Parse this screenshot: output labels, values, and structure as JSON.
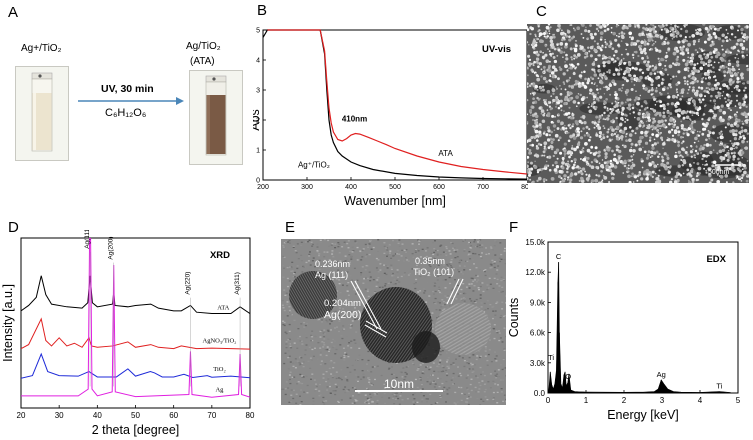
{
  "panel_a": {
    "letter": "A",
    "left_label": "Ag+/TiO₂",
    "right_label_line1": "Ag/TiO₂",
    "right_label_line2": "(ATA)",
    "arrow_top": "UV, 30 min",
    "arrow_bottom": "C₆H₁₂O₆",
    "colors": {
      "left_liquid": "#ece4cf",
      "right_liquid": "#7a5a45",
      "arrow": "#4a86b8"
    }
  },
  "panel_b": {
    "letter": "B"
  },
  "panel_c": {
    "letter": "C",
    "scale_label": "500nm"
  },
  "panel_d": {
    "letter": "D"
  },
  "panel_e": {
    "letter": "E",
    "annotations": {
      "a1_line1": "0.236nm",
      "a1_line2": "Ag (111)",
      "a2_line1": "0.35nm",
      "a2_line2": "TiO₂ (101)",
      "a3_line1": "0.204nm",
      "a3_line2": "Ag(200)"
    },
    "scale_label": "10nm"
  },
  "panel_f": {
    "letter": "F"
  },
  "chart_data": [
    {
      "type": "line",
      "title": "UV-vis",
      "xlabel": "Wavenumber [nm]",
      "ylabel": "Abs",
      "xlim": [
        200,
        800
      ],
      "ylim": [
        0,
        5
      ],
      "xticks": [
        200,
        300,
        400,
        500,
        600,
        700,
        800
      ],
      "yticks": [
        0,
        1,
        2,
        3,
        4,
        5
      ],
      "annotation": "410nm",
      "series": [
        {
          "name": "Ag⁺/TiO₂",
          "color": "#000000",
          "x": [
            200,
            210,
            330,
            340,
            345,
            350,
            355,
            360,
            370,
            380,
            400,
            420,
            450,
            500,
            550,
            600,
            650,
            700,
            750,
            800
          ],
          "y": [
            4.75,
            5.0,
            5.0,
            4.2,
            3.0,
            2.0,
            1.5,
            1.25,
            0.95,
            0.8,
            0.6,
            0.48,
            0.35,
            0.22,
            0.15,
            0.1,
            0.07,
            0.05,
            0.04,
            0.03
          ]
        },
        {
          "name": "ATA",
          "color": "#e02020",
          "x": [
            210,
            330,
            340,
            345,
            350,
            355,
            360,
            370,
            380,
            390,
            400,
            410,
            420,
            440,
            460,
            480,
            500,
            550,
            600,
            650,
            700,
            750,
            800
          ],
          "y": [
            5.0,
            5.0,
            4.3,
            3.3,
            2.4,
            1.9,
            1.6,
            1.35,
            1.3,
            1.38,
            1.5,
            1.55,
            1.53,
            1.42,
            1.3,
            1.18,
            1.05,
            0.8,
            0.6,
            0.45,
            0.35,
            0.27,
            0.2
          ]
        }
      ]
    },
    {
      "type": "line",
      "title": "XRD",
      "xlabel": "2 theta [degree]",
      "ylabel": "Intensity [a.u.]",
      "xlim": [
        20,
        80
      ],
      "xticks": [
        20,
        30,
        40,
        50,
        60,
        70,
        80
      ],
      "peak_labels": [
        {
          "label": "Ag(111)",
          "x": 38.1
        },
        {
          "label": "Ag(200)",
          "x": 44.3
        },
        {
          "label": "Ag(220)",
          "x": 64.4
        },
        {
          "label": "Ag(311)",
          "x": 77.4
        }
      ],
      "series": [
        {
          "name": "ATA",
          "color": "#000000",
          "offset": 3.0,
          "x": [
            20,
            22,
            24,
            25.3,
            26.5,
            28,
            32,
            36,
            37.5,
            38.1,
            38.7,
            40,
            44,
            44.3,
            44.6,
            48,
            50,
            54,
            56,
            60,
            62,
            64.4,
            66,
            70,
            75,
            77.4,
            80
          ],
          "y": [
            0.3,
            0.5,
            0.8,
            1.6,
            0.9,
            0.55,
            0.45,
            0.4,
            0.6,
            1.6,
            0.6,
            0.45,
            0.55,
            1.0,
            0.5,
            0.45,
            0.5,
            0.55,
            0.4,
            0.3,
            0.3,
            0.5,
            0.25,
            0.2,
            0.2,
            0.45,
            0.2
          ]
        },
        {
          "name": "AgNO₃/TiO₂",
          "color": "#e02020",
          "offset": 1.8,
          "x": [
            20,
            22,
            25.3,
            26.5,
            28,
            30,
            32,
            34,
            36,
            37.8,
            38.5,
            40,
            44,
            48,
            50,
            54,
            56,
            60,
            62,
            66,
            70,
            75,
            80
          ],
          "y": [
            0.1,
            0.25,
            1.2,
            0.4,
            0.2,
            0.5,
            0.2,
            0.3,
            0.15,
            0.5,
            0.2,
            0.15,
            0.2,
            0.35,
            0.15,
            0.25,
            0.15,
            0.1,
            0.2,
            0.1,
            0.12,
            0.1,
            0.08
          ]
        },
        {
          "name": "TiO₂",
          "color": "#1e2ad8",
          "offset": 0.8,
          "x": [
            20,
            23,
            25.3,
            27,
            30,
            35,
            37.8,
            40,
            45,
            48,
            50,
            53.9,
            55,
            57,
            60,
            62.7,
            65,
            68.8,
            70,
            75,
            80
          ],
          "y": [
            0.0,
            0.1,
            0.9,
            0.25,
            0.1,
            0.08,
            0.25,
            0.05,
            0.05,
            0.35,
            0.08,
            0.25,
            0.2,
            0.05,
            0.05,
            0.15,
            0.03,
            0.1,
            0.04,
            0.08,
            0.02
          ]
        },
        {
          "name": "Ag",
          "color": "#e020e0",
          "offset": 0.0,
          "x": [
            20,
            35,
            37.6,
            38.1,
            38.6,
            40,
            43.9,
            44.3,
            44.7,
            50,
            64,
            64.4,
            64.8,
            70,
            77,
            77.4,
            77.8,
            80
          ],
          "y": [
            0.15,
            0.15,
            0.4,
            8.0,
            0.4,
            0.15,
            0.3,
            5.0,
            0.3,
            0.12,
            0.2,
            1.8,
            0.2,
            0.1,
            0.2,
            1.7,
            0.2,
            0.1
          ]
        }
      ]
    },
    {
      "type": "bar",
      "title": "EDX",
      "xlabel": "Energy [keV]",
      "ylabel": "Counts",
      "xlim": [
        0,
        5
      ],
      "ylim": [
        0,
        15000
      ],
      "xticks": [
        0,
        1,
        2,
        3,
        4,
        5
      ],
      "yticks": [
        "0.0",
        "3.0k",
        "6.0k",
        "9.0k",
        "12.0k",
        "15.0k"
      ],
      "peak_labels": [
        {
          "label": "C",
          "x": 0.28,
          "y": 13000
        },
        {
          "label": "Ti",
          "x": 0.45,
          "y": 3000
        },
        {
          "label": "O",
          "x": 0.53,
          "y": 1100
        },
        {
          "label": "Ag",
          "x": 2.98,
          "y": 1300
        },
        {
          "label": "Ti",
          "x": 4.51,
          "y": 150
        }
      ],
      "x": [
        0.02,
        0.06,
        0.1,
        0.14,
        0.18,
        0.22,
        0.26,
        0.28,
        0.3,
        0.34,
        0.38,
        0.42,
        0.45,
        0.48,
        0.52,
        0.55,
        0.6,
        0.7,
        0.8,
        1.0,
        1.5,
        2.0,
        2.5,
        2.8,
        2.9,
        2.98,
        3.05,
        3.15,
        3.3,
        3.5,
        4.0,
        4.51,
        4.8
      ],
      "values": [
        200,
        2100,
        800,
        400,
        900,
        2200,
        11000,
        13000,
        6000,
        900,
        500,
        1800,
        2100,
        700,
        1000,
        1900,
        300,
        150,
        120,
        100,
        80,
        70,
        80,
        150,
        400,
        1300,
        900,
        400,
        150,
        80,
        60,
        150,
        50
      ]
    }
  ]
}
